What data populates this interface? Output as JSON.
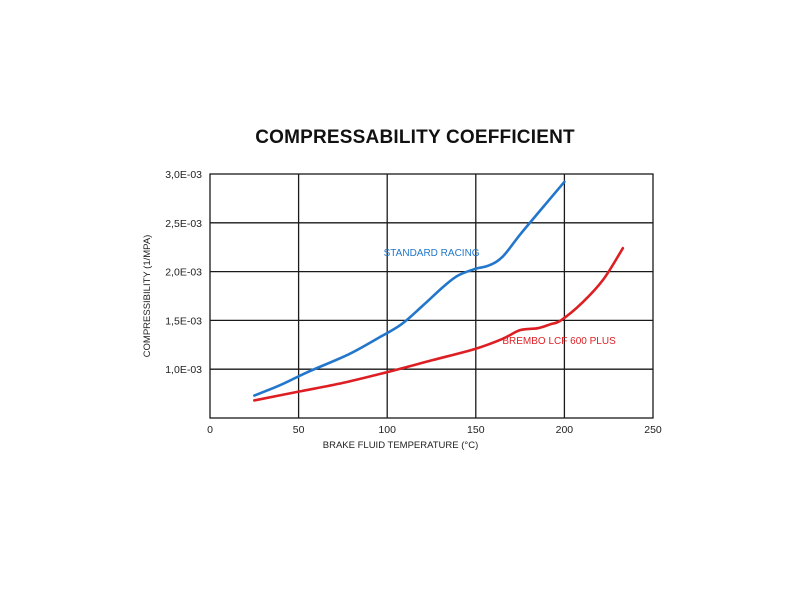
{
  "chart_data": {
    "type": "line",
    "title": "COMPRESSABILITY COEFFICIENT",
    "xlabel": "BRAKE FLUID TEMPERATURE (°C)",
    "ylabel": "COMPRESSIBILITY (1/MPA)",
    "xlim": [
      0,
      250
    ],
    "ylim": [
      0.0005,
      0.003
    ],
    "x_ticks": [
      0,
      50,
      100,
      150,
      200,
      250
    ],
    "x_tick_labels": [
      "0",
      "50",
      "100",
      "150",
      "200",
      "250"
    ],
    "y_ticks": [
      0.001,
      0.0015,
      0.002,
      0.0025,
      0.003
    ],
    "y_tick_labels": [
      "1,0E-03",
      "1,5E-03",
      "2,0E-03",
      "2,5E-03",
      "3,0E-03"
    ],
    "grid": true,
    "series": [
      {
        "name": "STANDARD RACING",
        "color": "#2277cc",
        "label_x": 98,
        "label_y": 0.00216,
        "points": [
          [
            25,
            0.00073
          ],
          [
            40,
            0.00084
          ],
          [
            55,
            0.00097
          ],
          [
            78,
            0.00115
          ],
          [
            95,
            0.00132
          ],
          [
            108,
            0.00146
          ],
          [
            120,
            0.00165
          ],
          [
            132,
            0.00185
          ],
          [
            140,
            0.00196
          ],
          [
            150,
            0.00203
          ],
          [
            157,
            0.00206
          ],
          [
            165,
            0.00215
          ],
          [
            175,
            0.00238
          ],
          [
            187,
            0.00264
          ],
          [
            200,
            0.00292
          ]
        ]
      },
      {
        "name": "BREMBO LCF 600 PLUS",
        "color": "#dd1f24",
        "label_x": 165,
        "label_y": 0.00126,
        "points": [
          [
            25,
            0.00068
          ],
          [
            50,
            0.00077
          ],
          [
            75,
            0.00086
          ],
          [
            100,
            0.00097
          ],
          [
            125,
            0.00109
          ],
          [
            150,
            0.00121
          ],
          [
            165,
            0.00131
          ],
          [
            175,
            0.0014
          ],
          [
            185,
            0.00142
          ],
          [
            192,
            0.00146
          ],
          [
            198,
            0.0015
          ],
          [
            210,
            0.00168
          ],
          [
            222,
            0.00192
          ],
          [
            233,
            0.00224
          ]
        ]
      }
    ]
  }
}
